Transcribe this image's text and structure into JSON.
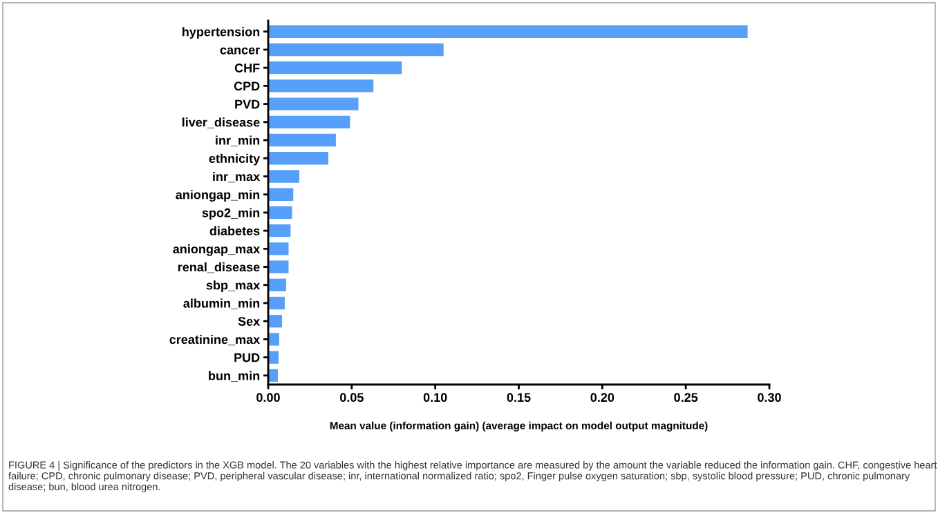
{
  "chart_data": {
    "type": "bar",
    "orientation": "horizontal",
    "categories": [
      "hypertension",
      "cancer",
      "CHF",
      "CPD",
      "PVD",
      "liver_disease",
      "inr_min",
      "ethnicity",
      "inr_max",
      "aniongap_min",
      "spo2_min",
      "diabetes",
      "aniongap_max",
      "renal_disease",
      "sbp_max",
      "albumin_min",
      "Sex",
      "creatinine_max",
      "PUD",
      "bun_min"
    ],
    "values": [
      0.287,
      0.105,
      0.08,
      0.063,
      0.054,
      0.049,
      0.0405,
      0.036,
      0.0186,
      0.015,
      0.0143,
      0.0134,
      0.0122,
      0.0122,
      0.0107,
      0.0099,
      0.0083,
      0.0066,
      0.0062,
      0.0058
    ],
    "color": "#56a0fc",
    "xlim": [
      0,
      0.3
    ],
    "xticks": [
      {
        "value": 0,
        "label": "0.00"
      },
      {
        "value": 0.05,
        "label": "0.05"
      },
      {
        "value": 0.1,
        "label": "0.10"
      },
      {
        "value": 0.15,
        "label": "0.15"
      },
      {
        "value": 0.2,
        "label": "0.20"
      },
      {
        "value": 0.25,
        "label": "0.25"
      },
      {
        "value": 0.3,
        "label": "0.30"
      }
    ],
    "xlabel": "Mean value (information gain) (average impact on model output magnitude)",
    "grid": false,
    "legend": false,
    "annotations": [
      "FIGURE 4 | Significance of the predictors in the XGB model. The 20 variables with the highest relative importance are measured by the amount the variable reduced the information gain. CHF, congestive heart failure; CPD, chronic pulmonary disease; PVD, peripheral vascular disease; inr, international normalized ratio; spo2, Finger pulse oxygen saturation; sbp, systolic blood pressure; PUD, chronic pulmonary disease; bun, blood urea nitrogen."
    ]
  }
}
